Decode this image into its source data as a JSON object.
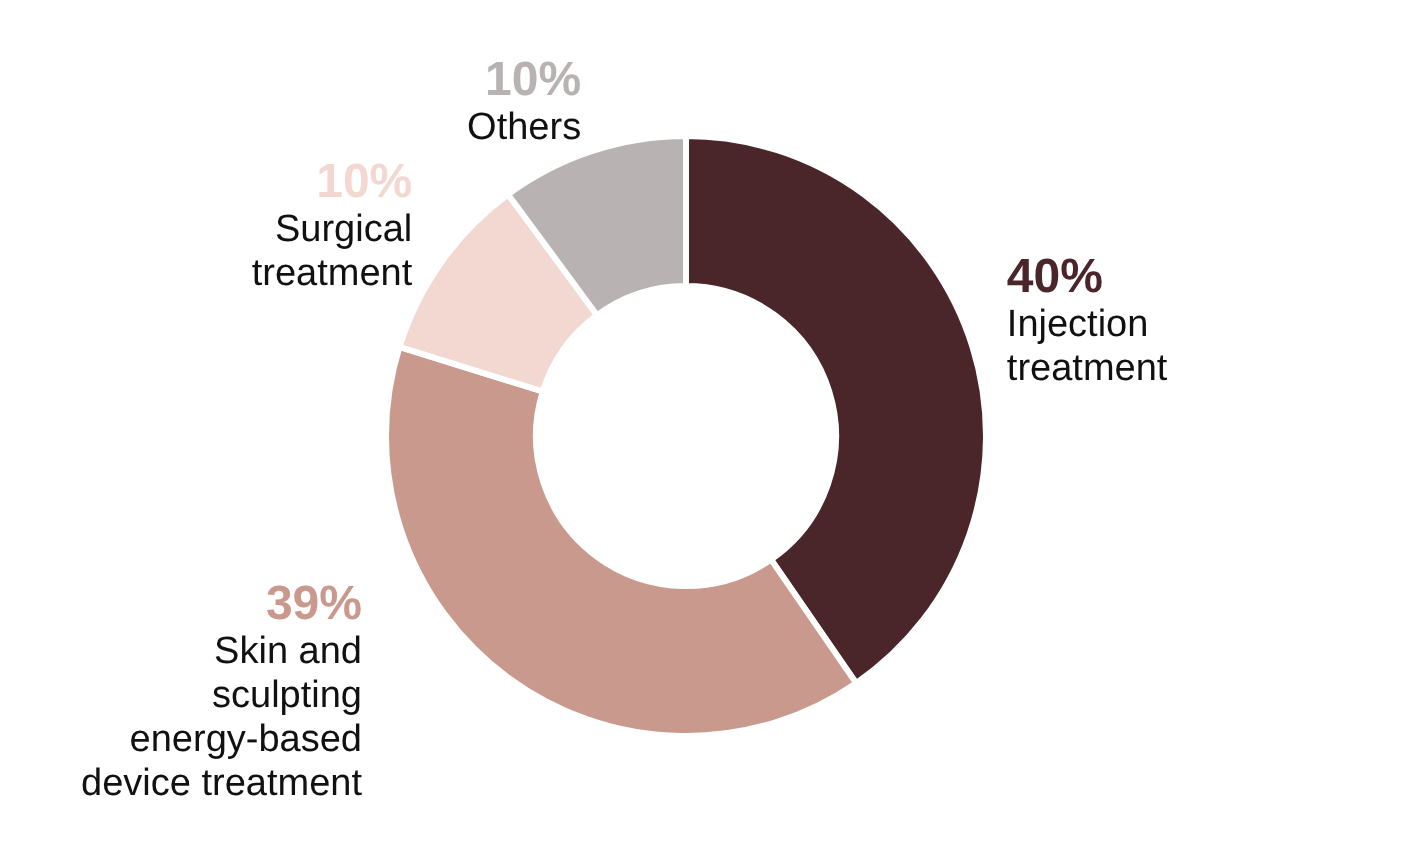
{
  "chart_data": {
    "type": "donut",
    "categories": [
      "Injection treatment",
      "Skin and sculpting energy-based device treatment",
      "Surgical treatment",
      "Others"
    ],
    "values": [
      40,
      39,
      10,
      10
    ],
    "value_labels": [
      "40%",
      "39%",
      "10%",
      "10%"
    ],
    "colors": [
      "#4a2529",
      "#c9998d",
      "#f2d8d0",
      "#b8b3b2"
    ],
    "legend": false
  }
}
